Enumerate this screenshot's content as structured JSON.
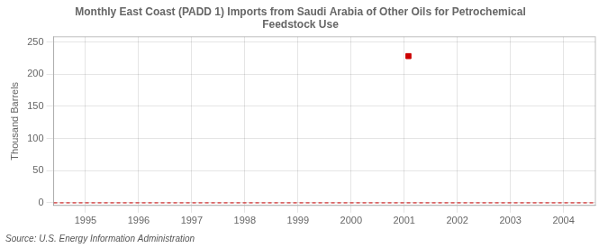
{
  "chart_data": {
    "type": "scatter",
    "title": "Monthly East Coast (PADD 1) Imports from Saudi Arabia of Other Oils for Petrochemical\nFeedstock Use",
    "ylabel": "Thousand Barrels",
    "source": "Source: U.S. Energy Information Administration",
    "x": [
      2001.08
    ],
    "values": [
      228
    ],
    "color": "#cc0000",
    "marker": "square",
    "xlim": [
      1994.4,
      2004.6
    ],
    "xticks": [
      1995,
      1996,
      1997,
      1998,
      1999,
      2000,
      2001,
      2002,
      2003,
      2004
    ],
    "ylim": [
      -4,
      258
    ],
    "yticks": [
      0,
      50,
      100,
      150,
      200,
      250
    ],
    "grid": true,
    "reference_lines": [
      {
        "y": 0,
        "color": "#cc0000",
        "line_style": "dashed"
      }
    ]
  }
}
